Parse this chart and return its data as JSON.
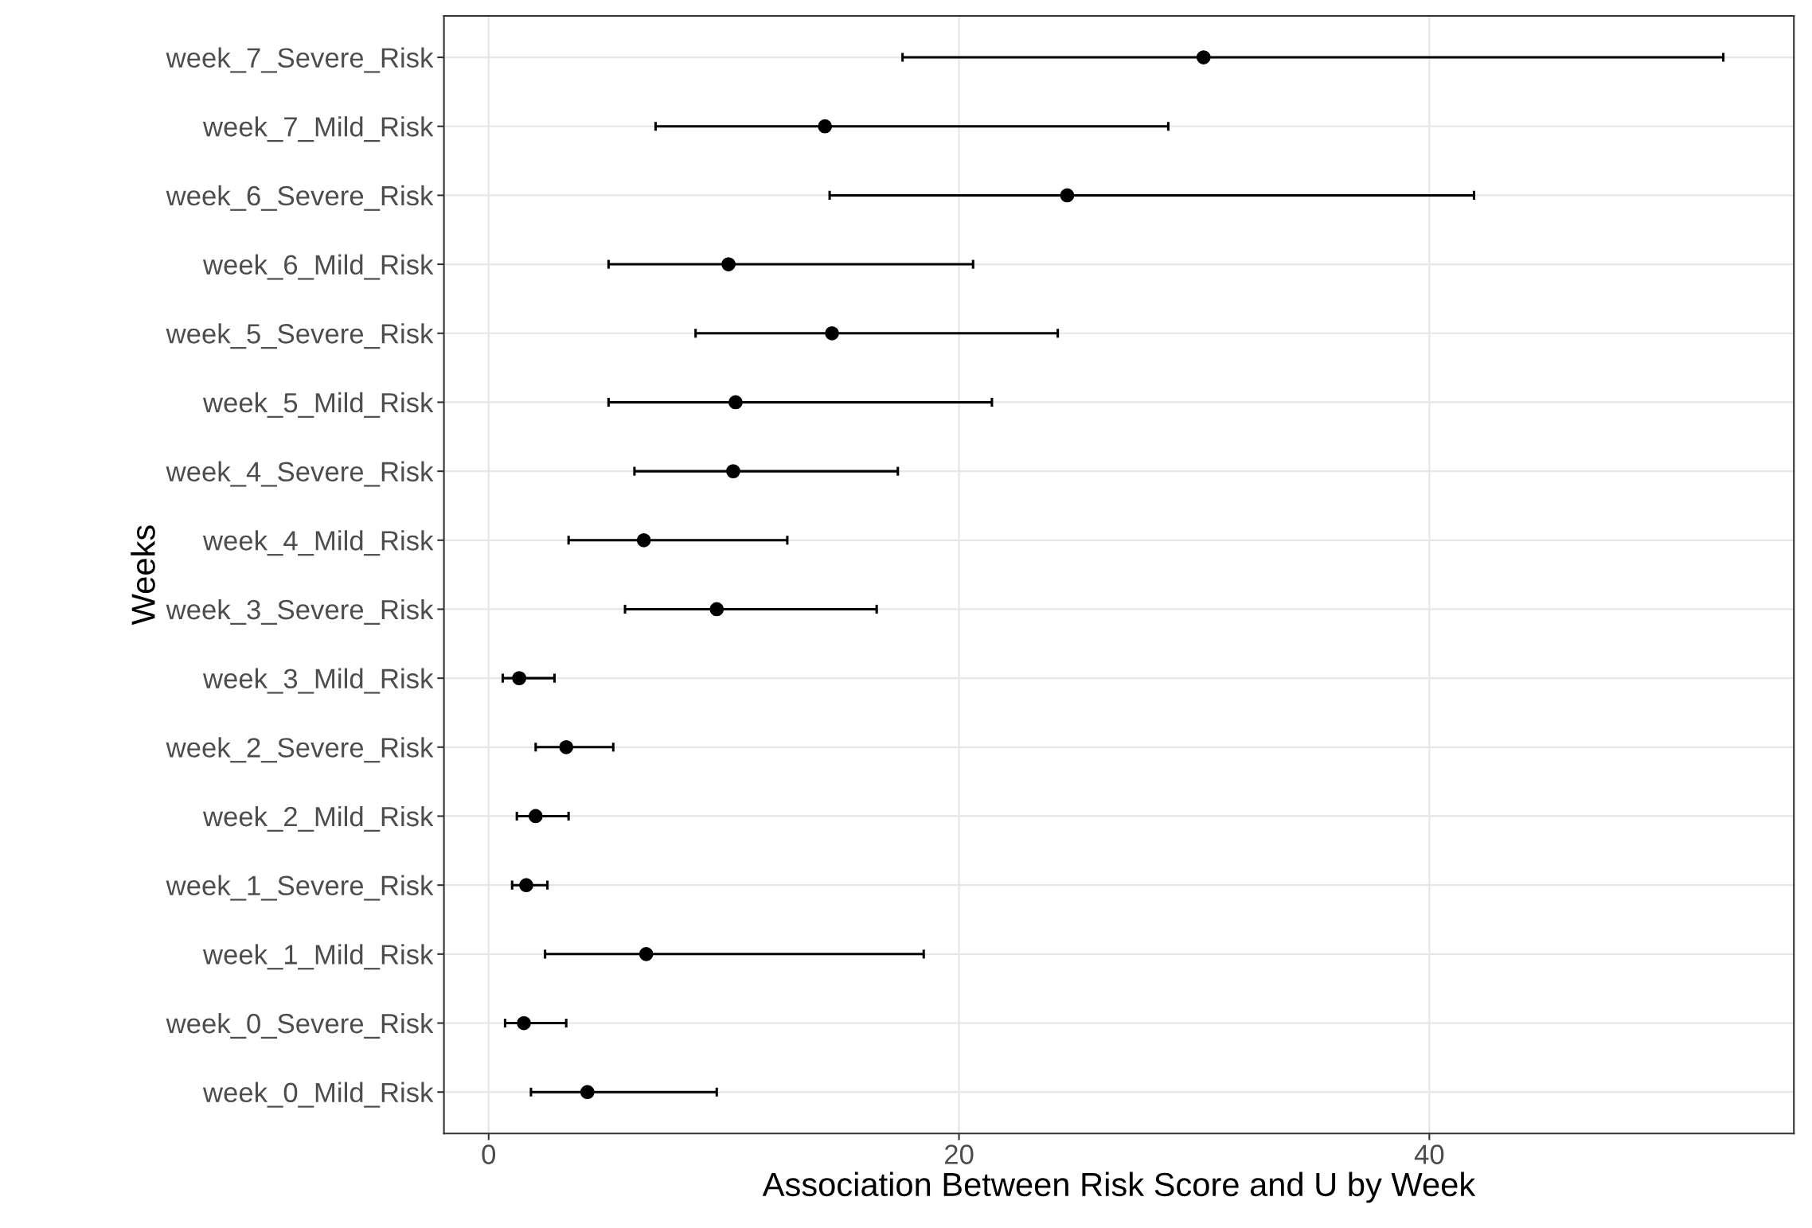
{
  "chart_data": {
    "type": "scatter",
    "orientation": "horizontal",
    "xlabel": "Association Between Risk Score and U by Week",
    "ylabel": "Weeks",
    "categories": [
      "week_7_Severe_Risk",
      "week_7_Mild_Risk",
      "week_6_Severe_Risk",
      "week_6_Mild_Risk",
      "week_5_Severe_Risk",
      "week_5_Mild_Risk",
      "week_4_Severe_Risk",
      "week_4_Mild_Risk",
      "week_3_Severe_Risk",
      "week_3_Mild_Risk",
      "week_2_Severe_Risk",
      "week_2_Mild_Risk",
      "week_1_Severe_Risk",
      "week_1_Mild_Risk",
      "week_0_Severe_Risk",
      "week_0_Mild_Risk"
    ],
    "values": [
      30.4,
      14.3,
      24.6,
      10.2,
      14.6,
      10.5,
      10.4,
      6.6,
      9.7,
      1.3,
      3.3,
      2.0,
      1.6,
      6.7,
      1.5,
      4.2
    ],
    "errors": [
      [
        17.6,
        52.5
      ],
      [
        7.1,
        28.9
      ],
      [
        14.5,
        41.9
      ],
      [
        5.1,
        20.6
      ],
      [
        8.8,
        24.2
      ],
      [
        5.1,
        21.4
      ],
      [
        6.2,
        17.4
      ],
      [
        3.4,
        12.7
      ],
      [
        5.8,
        16.5
      ],
      [
        0.6,
        2.8
      ],
      [
        2.0,
        5.3
      ],
      [
        1.2,
        3.4
      ],
      [
        1.0,
        2.5
      ],
      [
        2.4,
        18.5
      ],
      [
        0.7,
        3.3
      ],
      [
        1.8,
        9.7
      ]
    ],
    "color": "#000000",
    "marker": "circle",
    "xlim": [
      -1.9,
      55.5
    ],
    "xticks": [
      0,
      20,
      40
    ],
    "grid": true
  }
}
